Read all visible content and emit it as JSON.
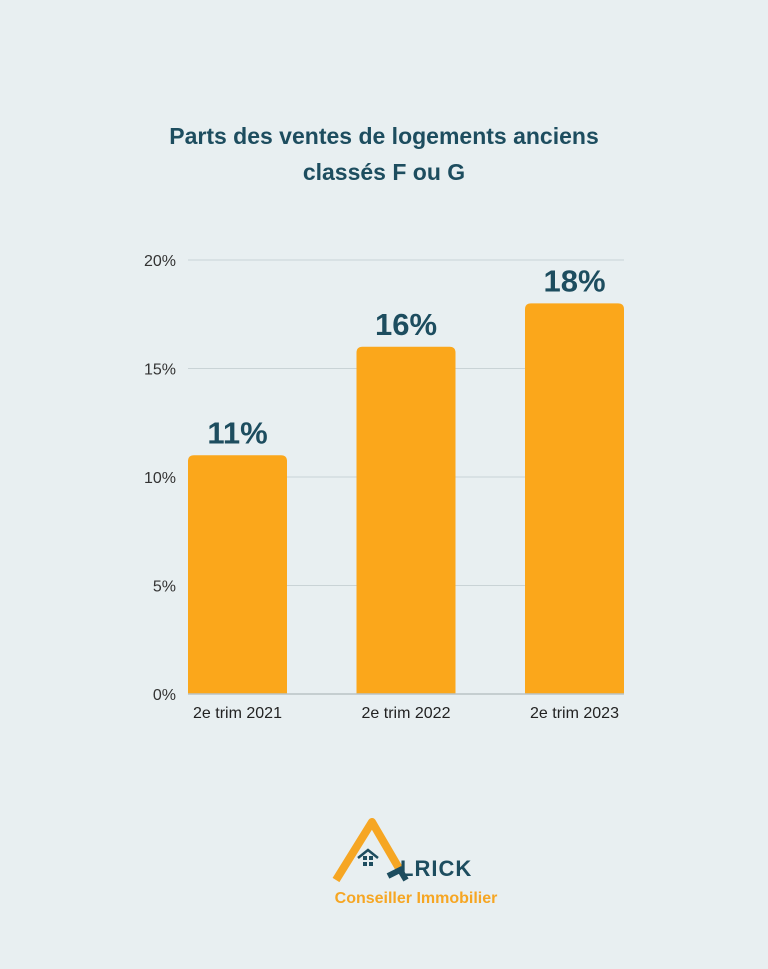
{
  "chart_data": {
    "type": "bar",
    "title": "Parts des ventes de logements anciens classés F ou G",
    "title_lines": [
      "Parts des ventes de logements anciens",
      "classés F ou G"
    ],
    "categories": [
      "2e trim 2021",
      "2e trim 2022",
      "2e trim 2023"
    ],
    "values": [
      11,
      16,
      18
    ],
    "data_labels": [
      "11%",
      "16%",
      "18%"
    ],
    "y_ticks": [
      0,
      5,
      10,
      15,
      20
    ],
    "y_tick_labels": [
      "0%",
      "5%",
      "10%",
      "15%",
      "20%"
    ],
    "ylim": [
      0,
      20
    ],
    "grid": true,
    "xlabel": "",
    "ylabel": "",
    "bar_color": "#fba71b",
    "label_color": "#1d4d5f"
  },
  "logo": {
    "word": "LRICK",
    "subtitle": "Conseiller Immobilier",
    "accent": "#f6a623",
    "dark": "#1d4d5f"
  }
}
